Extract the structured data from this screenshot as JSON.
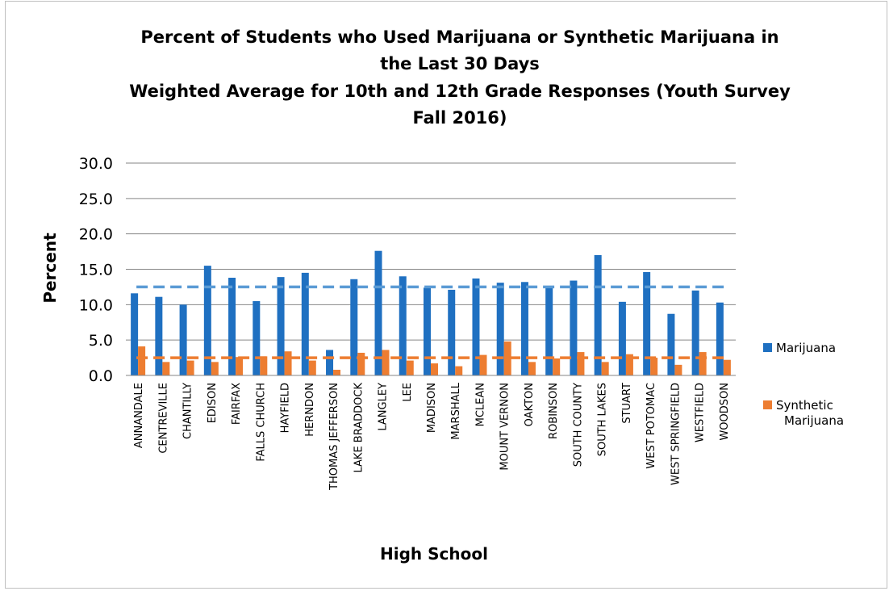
{
  "chart_data": {
    "type": "bar",
    "title": [
      "Percent of Students who Used Marijuana or Synthetic Marijuana in",
      "the Last 30 Days",
      "Weighted Average for 10th and 12th Grade Responses (Youth Survey",
      "Fall 2016)"
    ],
    "xlabel": "High School",
    "ylabel": "Percent",
    "ylim": [
      0,
      30
    ],
    "yticks": [
      "0.0",
      "5.0",
      "10.0",
      "15.0",
      "20.0",
      "25.0",
      "30.0"
    ],
    "grid": true,
    "legend_position": "right",
    "categories": [
      "ANNANDALE",
      "CENTREVILLE",
      "CHANTILLY",
      "EDISON",
      "FAIRFAX",
      "FALLS CHURCH",
      "HAYFIELD",
      "HERNDON",
      "THOMAS JEFFERSON",
      "LAKE BRADDOCK",
      "LANGLEY",
      "LEE",
      "MADISON",
      "MARSHALL",
      "MCLEAN",
      "MOUNT VERNON",
      "OAKTON",
      "ROBINSON",
      "SOUTH COUNTY",
      "SOUTH LAKES",
      "STUART",
      "WEST POTOMAC",
      "WEST SPRINGFIELD",
      "WESTFIELD",
      "WOODSON"
    ],
    "series": [
      {
        "name": "Marijuana",
        "color": "#1f70c1",
        "values": [
          11.6,
          11.1,
          10.0,
          15.5,
          13.8,
          10.5,
          13.9,
          14.5,
          3.6,
          13.6,
          17.6,
          14.0,
          12.4,
          12.1,
          13.7,
          13.1,
          13.2,
          12.4,
          13.4,
          17.0,
          10.4,
          14.6,
          8.7,
          12.0,
          10.3
        ]
      },
      {
        "name": "Synthetic Marijuana",
        "color": "#ed7d31",
        "values": [
          4.1,
          1.9,
          2.1,
          1.9,
          2.6,
          2.7,
          3.4,
          2.1,
          0.8,
          3.2,
          3.6,
          2.1,
          1.7,
          1.3,
          2.9,
          4.8,
          1.9,
          2.4,
          3.3,
          1.9,
          3.0,
          2.5,
          1.5,
          3.3,
          2.2
        ]
      }
    ],
    "reference_lines": [
      {
        "color": "#5b9bd5",
        "value": 12.5
      },
      {
        "color": "#ed7d31",
        "value": 2.5
      }
    ]
  }
}
